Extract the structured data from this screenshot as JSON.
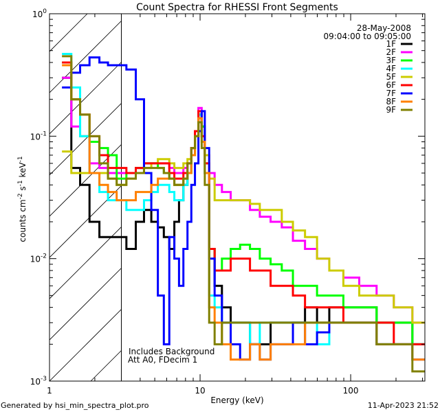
{
  "chart_data": {
    "type": "line",
    "title": "Count Spectra for RHESSI Front Segments",
    "xlabel": "Energy (keV)",
    "ylabel": {
      "base": "counts cm",
      "parts": [
        [
          "-2",
          " s"
        ],
        [
          "-1",
          " keV"
        ],
        [
          "-1",
          ""
        ]
      ]
    },
    "ylabel_text": "counts cm-2 s-1 keV-1",
    "xscale": "log",
    "yscale": "log",
    "xlim": [
      1,
      311
    ],
    "ylim": [
      0.001,
      1
    ],
    "x_ticks": [
      {
        "value": 1,
        "label": "1"
      },
      {
        "value": 10,
        "label": "10"
      },
      {
        "value": 100,
        "label": "100"
      }
    ],
    "y_ticks": [
      {
        "value": 1,
        "base": "10",
        "exp": "0"
      },
      {
        "value": 0.1,
        "base": "10",
        "exp": "-1"
      },
      {
        "value": 0.01,
        "base": "10",
        "exp": "-2"
      },
      {
        "value": 0.001,
        "base": "10",
        "exp": "-3"
      }
    ],
    "hatched_region": [
      1,
      3
    ],
    "annotation_date": "28-May-2008",
    "annotation_time": "09:04:00 to 09:05:00",
    "notes": [
      "Includes Background",
      "Att A0, FDecim 1"
    ],
    "legend_position": "top-right",
    "x": [
      1.3,
      1.5,
      1.7,
      2.0,
      2.3,
      2.6,
      3.0,
      3.5,
      4.0,
      4.5,
      5.0,
      5.5,
      6.0,
      6.5,
      7.0,
      7.5,
      8.0,
      8.5,
      9.0,
      9.5,
      10,
      10.5,
      11,
      12,
      13,
      15,
      17,
      20,
      23,
      27,
      32,
      38,
      45,
      55,
      65,
      80,
      100,
      130,
      170,
      220,
      300
    ],
    "series": [
      {
        "name": "1F",
        "color": "#000000",
        "values": [
          0.3,
          0.055,
          0.04,
          0.02,
          0.015,
          0.015,
          0.015,
          0.012,
          0.02,
          0.025,
          0.02,
          0.018,
          0.015,
          0.012,
          0.02,
          0.03,
          0.04,
          0.05,
          0.08,
          0.1,
          0.15,
          0.12,
          0.05,
          0.012,
          0.006,
          0.004,
          0.003,
          0.003,
          0.002,
          0.002,
          0.003,
          0.003,
          0.003,
          0.004,
          0.003,
          0.004,
          0.004,
          0.004,
          0.003,
          0.003,
          0.002
        ]
      },
      {
        "name": "2F",
        "color": "#ff00ff",
        "values": [
          0.3,
          0.12,
          0.1,
          0.06,
          0.055,
          0.05,
          0.05,
          0.05,
          0.055,
          0.06,
          0.06,
          0.06,
          0.06,
          0.055,
          0.05,
          0.05,
          0.055,
          0.06,
          0.08,
          0.11,
          0.17,
          0.12,
          0.07,
          0.05,
          0.04,
          0.035,
          0.03,
          0.03,
          0.025,
          0.022,
          0.02,
          0.018,
          0.014,
          0.012,
          0.01,
          0.008,
          0.007,
          0.006,
          0.005,
          0.004,
          0.003
        ]
      },
      {
        "name": "3F",
        "color": "#00ff00",
        "values": [
          0.4,
          0.2,
          0.1,
          0.09,
          0.08,
          0.07,
          0.045,
          0.05,
          0.055,
          0.06,
          0.06,
          0.055,
          0.05,
          0.045,
          0.04,
          0.04,
          0.045,
          0.05,
          0.07,
          0.1,
          0.15,
          0.12,
          0.06,
          0.012,
          0.008,
          0.01,
          0.012,
          0.013,
          0.012,
          0.01,
          0.009,
          0.008,
          0.006,
          0.006,
          0.005,
          0.005,
          0.004,
          0.004,
          0.003,
          0.003,
          0.002
        ]
      },
      {
        "name": "4F",
        "color": "#00ffff",
        "values": [
          0.47,
          0.25,
          0.1,
          0.05,
          0.035,
          0.03,
          0.03,
          0.025,
          0.025,
          0.03,
          0.035,
          0.04,
          0.04,
          0.035,
          0.03,
          0.03,
          0.04,
          0.05,
          0.07,
          0.1,
          0.15,
          0.1,
          0.05,
          0.005,
          0.004,
          0.003,
          0.003,
          0.003,
          0.002,
          0.003,
          0.003,
          0.003,
          0.003,
          0.003,
          0.002,
          0.003,
          0.003,
          0.003,
          0.002,
          0.002,
          0.002
        ]
      },
      {
        "name": "5F",
        "color": "#cccc00",
        "values": [
          0.075,
          0.05,
          0.05,
          0.05,
          0.05,
          0.045,
          0.04,
          0.045,
          0.05,
          0.055,
          0.06,
          0.065,
          0.065,
          0.06,
          0.055,
          0.055,
          0.06,
          0.065,
          0.08,
          0.1,
          0.13,
          0.1,
          0.07,
          0.045,
          0.03,
          0.03,
          0.03,
          0.03,
          0.028,
          0.025,
          0.025,
          0.02,
          0.017,
          0.015,
          0.01,
          0.008,
          0.006,
          0.005,
          0.005,
          0.004,
          0.003
        ]
      },
      {
        "name": "6F",
        "color": "#ff0000",
        "values": [
          0.4,
          0.2,
          0.15,
          0.1,
          0.07,
          0.055,
          0.055,
          0.05,
          0.055,
          0.06,
          0.06,
          0.06,
          0.06,
          0.05,
          0.045,
          0.045,
          0.05,
          0.06,
          0.08,
          0.11,
          0.16,
          0.1,
          0.06,
          0.012,
          0.008,
          0.008,
          0.01,
          0.01,
          0.008,
          0.008,
          0.006,
          0.006,
          0.005,
          0.004,
          0.004,
          0.004,
          0.003,
          0.003,
          0.003,
          0.002,
          0.002
        ]
      },
      {
        "name": "7F",
        "color": "#0000ff",
        "values": [
          0.25,
          0.33,
          0.38,
          0.44,
          0.4,
          0.38,
          0.38,
          0.35,
          0.2,
          0.05,
          0.025,
          0.005,
          0.002,
          0.015,
          0.01,
          0.006,
          0.012,
          0.02,
          0.04,
          0.06,
          0.11,
          0.16,
          0.08,
          0.01,
          0.005,
          0.003,
          0.002,
          0.0015,
          0.002,
          0.0015,
          0.002,
          0.002,
          0.003,
          0.002,
          0.0025,
          0.003,
          0.003,
          0.003,
          0.002,
          0.002,
          0.0015
        ]
      },
      {
        "name": "8F",
        "color": "#ff8000",
        "values": [
          0.38,
          0.2,
          0.15,
          0.05,
          0.04,
          0.035,
          0.03,
          0.03,
          0.035,
          0.035,
          0.04,
          0.045,
          0.045,
          0.045,
          0.04,
          0.04,
          0.045,
          0.05,
          0.07,
          0.1,
          0.14,
          0.09,
          0.05,
          0.004,
          0.003,
          0.002,
          0.0015,
          0.0015,
          0.002,
          0.0015,
          0.002,
          0.002,
          0.002,
          0.003,
          0.003,
          0.003,
          0.003,
          0.003,
          0.002,
          0.002,
          0.0015
        ]
      },
      {
        "name": "9F",
        "color": "#808000",
        "values": [
          0.45,
          0.2,
          0.15,
          0.1,
          0.06,
          0.045,
          0.04,
          0.045,
          0.05,
          0.055,
          0.055,
          0.055,
          0.05,
          0.045,
          0.04,
          0.04,
          0.045,
          0.06,
          0.08,
          0.1,
          0.13,
          0.08,
          0.04,
          0.003,
          0.002,
          0.003,
          0.003,
          0.003,
          0.003,
          0.003,
          0.003,
          0.003,
          0.003,
          0.003,
          0.003,
          0.003,
          0.003,
          0.003,
          0.002,
          0.002,
          0.0012
        ]
      }
    ]
  },
  "footer": {
    "generated_by": "Generated by hsi_min_spectra_plot.pro",
    "timestamp": "11-Apr-2023 21:52"
  }
}
